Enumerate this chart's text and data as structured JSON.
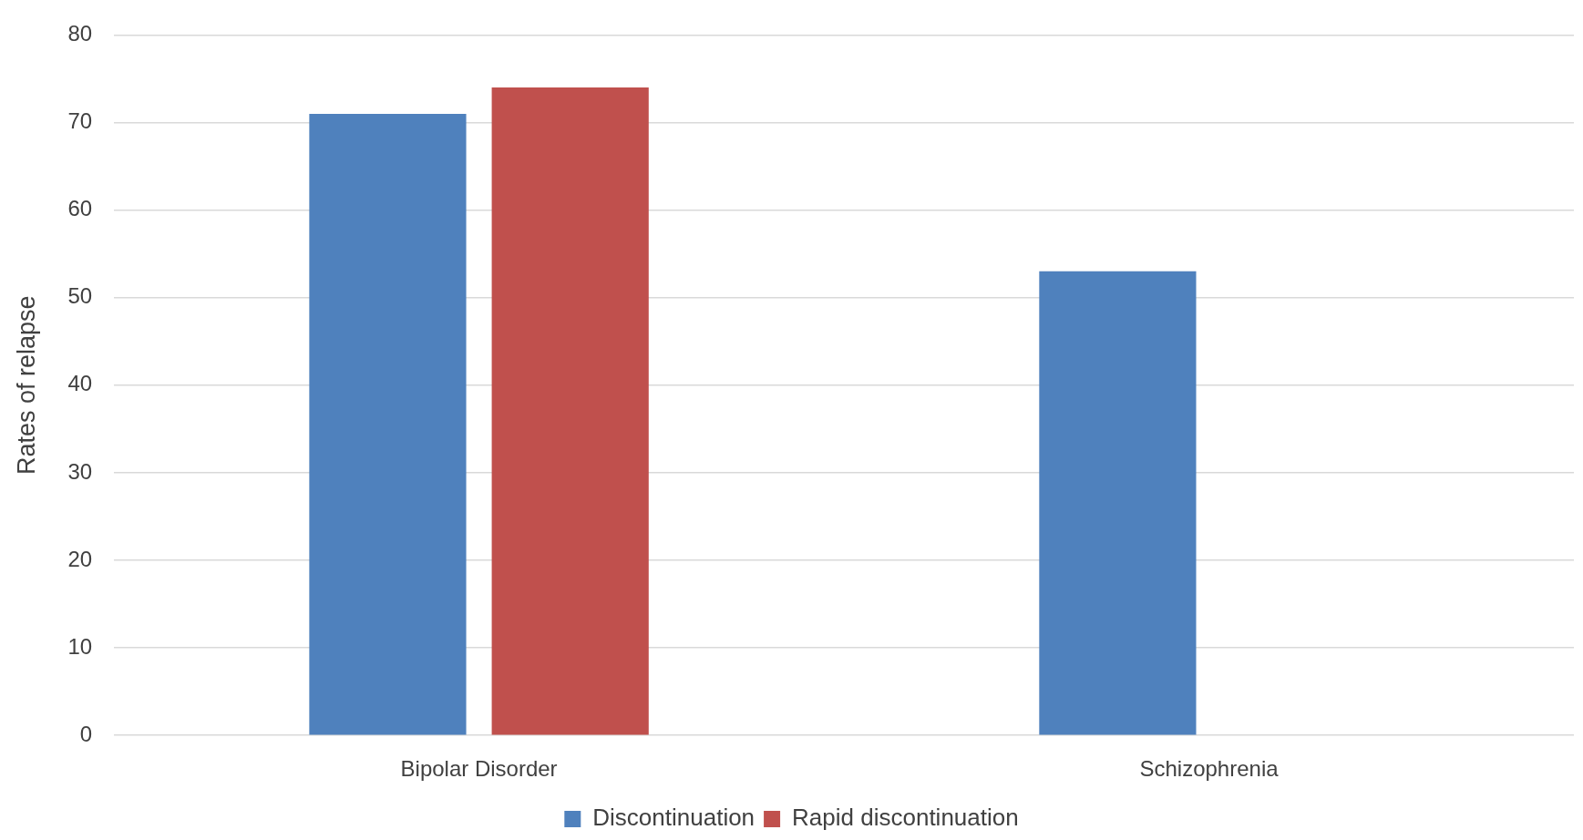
{
  "chart_data": {
    "type": "bar",
    "ylabel": "Rates of relapse",
    "categories": [
      "Bipolar Disorder",
      "Schizophrenia"
    ],
    "series": [
      {
        "name": "Discontinuation",
        "color": "#4f81bd",
        "values": [
          71,
          53
        ]
      },
      {
        "name": "Rapid discontinuation",
        "color": "#c0504d",
        "values": [
          74,
          null
        ]
      }
    ],
    "ylim": [
      0,
      80
    ],
    "yticks": [
      0,
      10,
      20,
      30,
      40,
      50,
      60,
      70,
      80
    ],
    "grid": "y",
    "legend": "bottom"
  }
}
